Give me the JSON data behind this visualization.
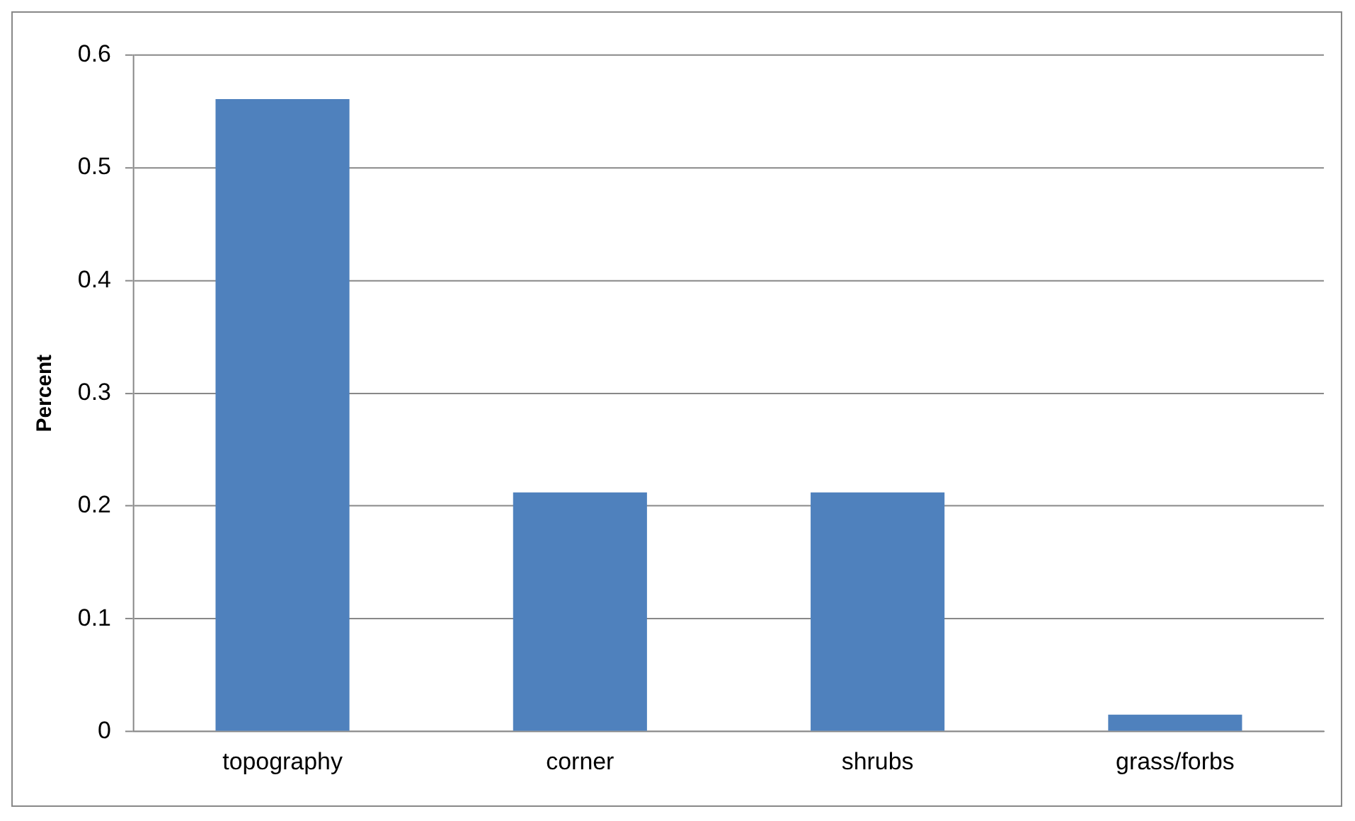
{
  "chart_data": {
    "type": "bar",
    "ylabel": "Percent",
    "categories": [
      "topography",
      "corner",
      "shrubs",
      "grass/forbs"
    ],
    "values": [
      0.561,
      0.212,
      0.212,
      0.015
    ],
    "color": "#4f81bd",
    "ylim": [
      0,
      0.6
    ],
    "yticks": [
      0,
      0.1,
      0.2,
      0.3,
      0.4,
      0.5,
      0.6
    ],
    "grid": "y",
    "legend": false
  }
}
